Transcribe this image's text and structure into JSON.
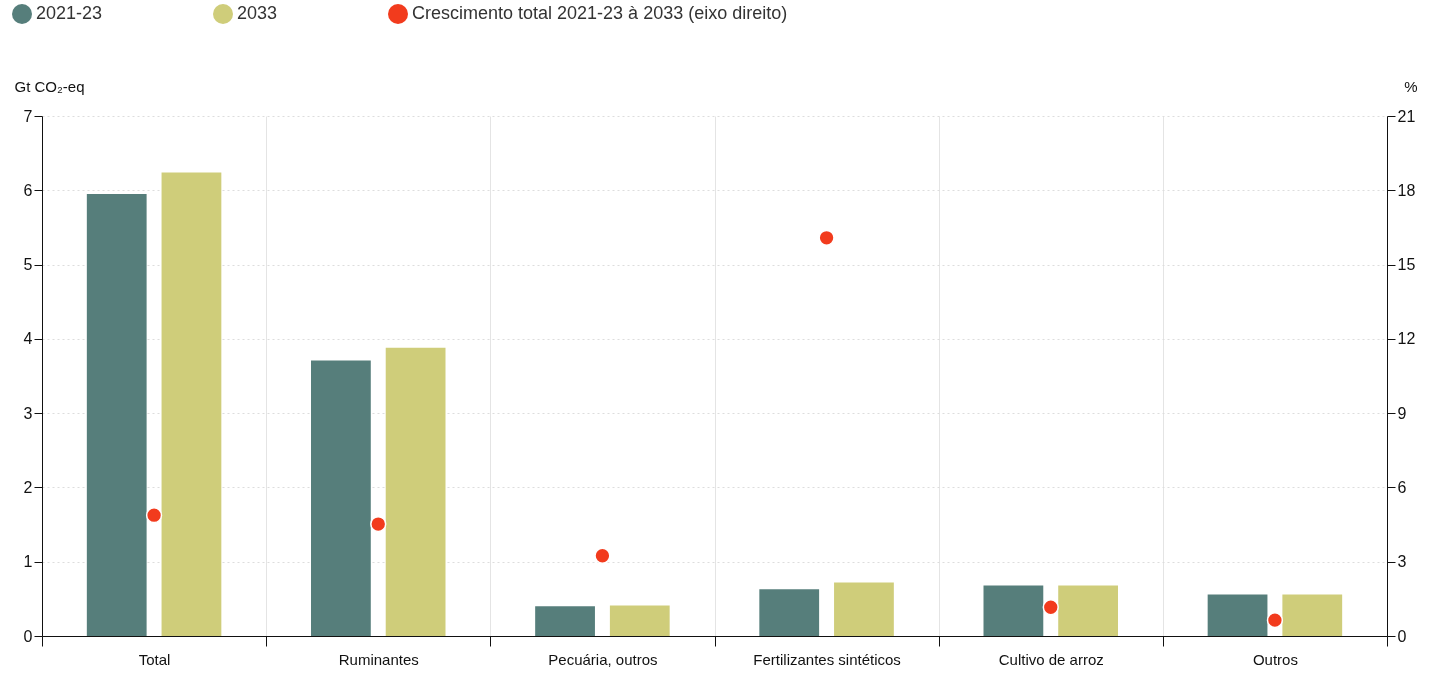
{
  "chart_data": {
    "type": "bar",
    "ylabel": "Gt CO₂-eq",
    "y2label": "%",
    "categories": [
      "Total",
      "Ruminantes",
      "Pecuária, outros",
      "Fertilizantes sintéticos",
      "Cultivo de arroz",
      "Outros"
    ],
    "series": [
      {
        "name": "2021-23",
        "color": "#567e7b",
        "values": [
          5.95,
          3.71,
          0.4,
          0.63,
          0.68,
          0.56
        ]
      },
      {
        "name": "2033",
        "color": "#cfcd7a",
        "values": [
          6.24,
          3.88,
          0.41,
          0.72,
          0.68,
          0.56
        ]
      },
      {
        "name": "Crescimento total 2021-23 à 2033  (eixo direito)",
        "type": "scatter",
        "axis": "y2",
        "color": "#f23b1d",
        "values": [
          4.88,
          4.52,
          3.24,
          16.08,
          1.16,
          0.64
        ]
      }
    ],
    "ylim": [
      0,
      7
    ],
    "yticks": [
      0,
      1,
      2,
      3,
      4,
      5,
      6,
      7
    ],
    "y2lim": [
      0,
      21
    ],
    "y2ticks": [
      0,
      3,
      6,
      9,
      12,
      15,
      18,
      21
    ],
    "grid": true,
    "legend": "top left",
    "marker": "circle"
  }
}
